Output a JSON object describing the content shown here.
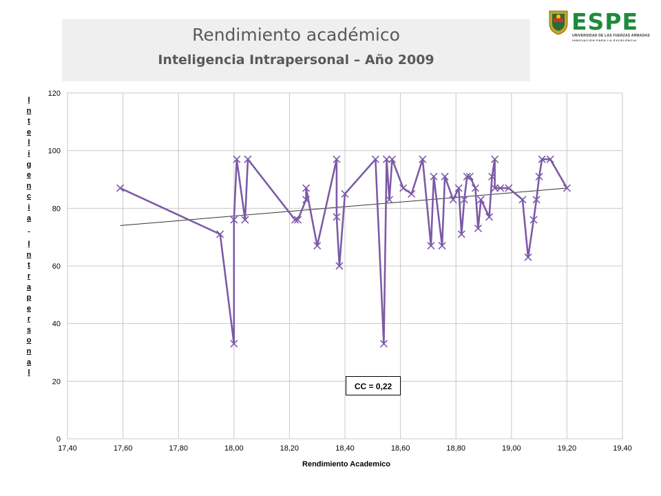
{
  "header": {
    "title": "Rendimiento académico",
    "subtitle": "Inteligencia Intrapersonal – Año 2009"
  },
  "logo": {
    "name": "ESPE",
    "line1": "UNIVERSIDAD DE LAS FUERZAS ARMADAS",
    "line2": "INNOVACIÓN PARA LA EXCELENCIA",
    "brand_color": "#1e8a3c"
  },
  "chart_data": {
    "type": "line",
    "xlabel": "Rendimiento Academico",
    "ylabel": "Inteligencia Intrapersonal",
    "xlim": [
      17.4,
      19.4
    ],
    "ylim": [
      0,
      120
    ],
    "x_ticks": [
      "17,40",
      "17,60",
      "17,80",
      "18,00",
      "18,20",
      "18,40",
      "18,60",
      "18,80",
      "19,00",
      "19,20",
      "19,40"
    ],
    "y_ticks": [
      "0",
      "20",
      "40",
      "60",
      "80",
      "100",
      "120"
    ],
    "grid": true,
    "line_color": "#7b5aa6",
    "trend_color": "#333333",
    "annotation": "CC = 0,22",
    "trendline": {
      "x": [
        17.59,
        19.2
      ],
      "y": [
        74,
        87
      ]
    },
    "series": [
      {
        "marker": "x",
        "points": [
          [
            17.59,
            87
          ],
          [
            17.95,
            71
          ],
          [
            18.0,
            33
          ],
          [
            18.0,
            76
          ],
          [
            18.01,
            97
          ],
          [
            18.04,
            76
          ],
          [
            18.05,
            97
          ],
          [
            18.22,
            76
          ],
          [
            18.23,
            76
          ],
          [
            18.26,
            83
          ],
          [
            18.26,
            87
          ],
          [
            18.3,
            67
          ],
          [
            18.37,
            97
          ],
          [
            18.37,
            77
          ],
          [
            18.38,
            60
          ],
          [
            18.4,
            85
          ],
          [
            18.51,
            97
          ],
          [
            18.54,
            33
          ],
          [
            18.55,
            97
          ],
          [
            18.56,
            83
          ],
          [
            18.57,
            97
          ],
          [
            18.61,
            87
          ],
          [
            18.64,
            85
          ],
          [
            18.68,
            97
          ],
          [
            18.71,
            67
          ],
          [
            18.72,
            91
          ],
          [
            18.75,
            67
          ],
          [
            18.76,
            91
          ],
          [
            18.79,
            83
          ],
          [
            18.81,
            87
          ],
          [
            18.82,
            71
          ],
          [
            18.83,
            83
          ],
          [
            18.84,
            91
          ],
          [
            18.85,
            91
          ],
          [
            18.87,
            87
          ],
          [
            18.88,
            73
          ],
          [
            18.89,
            83
          ],
          [
            18.92,
            77
          ],
          [
            18.93,
            91
          ],
          [
            18.94,
            97
          ],
          [
            18.94,
            87
          ],
          [
            18.96,
            87
          ],
          [
            18.99,
            87
          ],
          [
            19.04,
            83
          ],
          [
            19.06,
            63
          ],
          [
            19.08,
            76
          ],
          [
            19.09,
            83
          ],
          [
            19.1,
            91
          ],
          [
            19.11,
            97
          ],
          [
            19.14,
            97
          ],
          [
            19.2,
            87
          ]
        ]
      }
    ]
  }
}
